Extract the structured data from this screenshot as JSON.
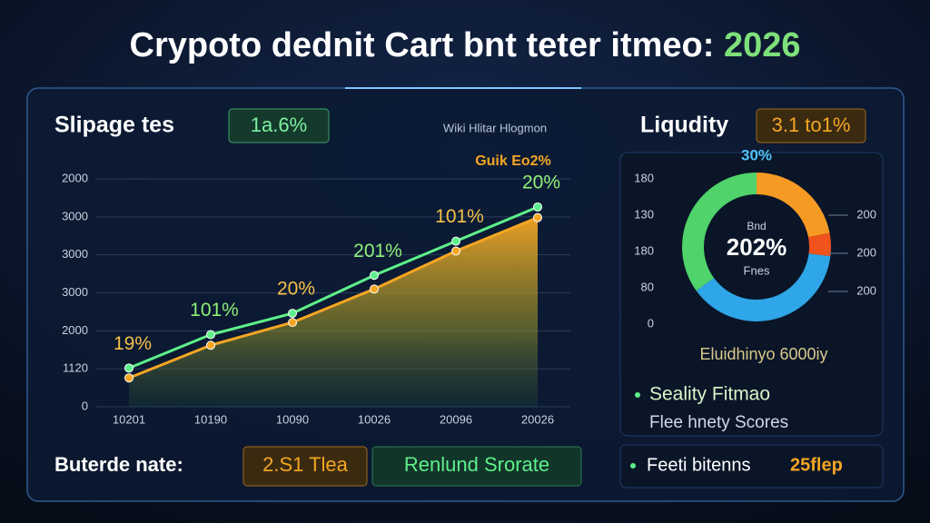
{
  "header": {
    "title": "Crypoto dednit Cart bnt teter itmeo:",
    "title_year": "2026"
  },
  "left_panel": {
    "heading": "Slipage tes",
    "badge": "1a.6%",
    "legend_text": "Wiki Hlitar Hlogmon",
    "legend_badge": "Guik Eo2%"
  },
  "bottom_row": {
    "label": "Buterde nate:",
    "badge_1": "2.S1 Tlea",
    "badge_2": "Renlund Srorate"
  },
  "right_panel": {
    "heading": "Liqudity",
    "badge": "3.1 to1%",
    "caption": "Eluidhinyo 6000iy",
    "bullets": [
      "Seality Fitmao",
      "Flee hnety Scores"
    ],
    "footer_label": "Feeti bitenns",
    "footer_value": "25flep"
  },
  "chart_data": [
    {
      "type": "area",
      "categories": [
        "10201",
        "10190",
        "10090",
        "10026",
        "20096",
        "20026"
      ],
      "series": [
        {
          "color": "#5ef08a",
          "values": [
            510,
            950,
            1230,
            1730,
            2180,
            2630
          ]
        },
        {
          "color": "#f5a623",
          "values": [
            380,
            810,
            1110,
            1550,
            2050,
            2490
          ]
        }
      ],
      "point_labels": [
        "19%",
        "101%",
        "20%",
        "201%",
        "101%",
        "20%"
      ],
      "ylim": [
        0,
        3000
      ],
      "yticks": [
        0,
        {
          "value": 500,
          "label": "1120"
        },
        {
          "value": 1000,
          "label": "2000"
        },
        {
          "value": 1500,
          "label": "3000"
        },
        {
          "value": 2000,
          "label": "3000"
        },
        {
          "value": 2500,
          "label": "3000"
        },
        {
          "value": 3000,
          "label": "2000"
        }
      ],
      "grid": true
    },
    {
      "type": "donut",
      "values": [
        22,
        5,
        38,
        35
      ],
      "colors": [
        "#f59a23",
        "#f0531c",
        "#2fa6e8",
        "#4fd36a"
      ],
      "top_label": "30%",
      "center_top": "Bnd",
      "center_label": "202%",
      "center_bottom": "Fnes",
      "left_labels": [
        180,
        130,
        180,
        80,
        0
      ],
      "right_labels": [
        200,
        200,
        200
      ]
    }
  ]
}
